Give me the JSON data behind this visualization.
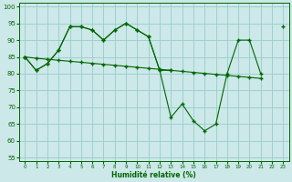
{
  "xlabel": "Humidité relative (%)",
  "background_color": "#cce8e8",
  "grid_color": "#99cccc",
  "line_color": "#006600",
  "xlim": [
    -0.5,
    23.5
  ],
  "ylim": [
    54,
    101
  ],
  "yticks": [
    55,
    60,
    65,
    70,
    75,
    80,
    85,
    90,
    95,
    100
  ],
  "xticks": [
    0,
    1,
    2,
    3,
    4,
    5,
    6,
    7,
    8,
    9,
    10,
    11,
    12,
    13,
    14,
    15,
    16,
    17,
    18,
    19,
    20,
    21,
    22,
    23
  ],
  "s1_x": [
    0,
    1,
    2,
    3,
    4,
    5,
    6,
    7,
    8,
    9,
    10,
    11,
    12,
    13
  ],
  "s1_y": [
    85,
    81,
    83,
    87,
    94,
    94,
    93,
    90,
    93,
    95,
    93,
    91,
    81,
    81
  ],
  "s2_x": [
    0,
    1,
    2,
    3,
    4,
    5,
    6,
    7,
    8,
    9,
    10,
    11,
    12,
    13,
    14,
    15,
    16,
    17,
    18,
    19,
    20,
    21
  ],
  "s2_y": [
    85,
    84.6,
    84.3,
    84.0,
    83.7,
    83.4,
    83.1,
    82.8,
    82.5,
    82.2,
    81.9,
    81.6,
    81.3,
    81.0,
    80.7,
    80.4,
    80.1,
    79.8,
    79.5,
    79.2,
    78.9,
    78.6
  ],
  "s3_x": [
    0,
    1,
    2,
    3,
    4,
    5,
    6,
    7,
    8,
    9,
    10,
    11,
    12,
    13,
    14,
    15,
    16,
    17,
    18,
    19,
    20,
    21,
    23
  ],
  "s3_y": [
    85,
    81,
    83,
    87,
    94,
    94,
    93,
    90,
    93,
    95,
    93,
    91,
    81,
    67,
    71,
    66,
    63,
    65,
    80,
    90,
    90,
    80,
    94
  ]
}
